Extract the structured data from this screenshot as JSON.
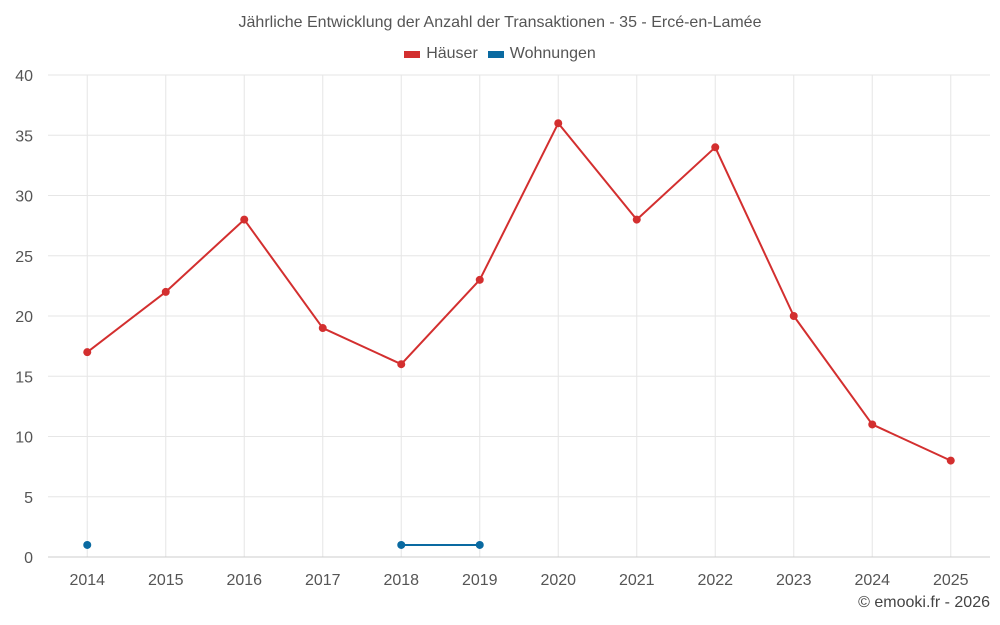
{
  "title": "Jährliche Entwicklung der Anzahl der Transaktionen - 35 - Ercé-en-Lamée",
  "credit": "© emooki.fr - 2026",
  "colors": {
    "haeuser": "#d32f2f",
    "wohnungen": "#0a6aa1",
    "grid": "#e6e6e6",
    "axis": "#cccccc"
  },
  "legend": [
    {
      "label": "Häuser",
      "color": "#d32f2f"
    },
    {
      "label": "Wohnungen",
      "color": "#0a6aa1"
    }
  ],
  "chart_data": {
    "type": "line",
    "title": "Jährliche Entwicklung der Anzahl der Transaktionen - 35 - Ercé-en-Lamée",
    "categories": [
      "2014",
      "2015",
      "2016",
      "2017",
      "2018",
      "2019",
      "2020",
      "2021",
      "2022",
      "2023",
      "2024",
      "2025"
    ],
    "ylim": [
      0,
      40
    ],
    "yticks": [
      0,
      5,
      10,
      15,
      20,
      25,
      30,
      35,
      40
    ],
    "grid": true,
    "legend_position": "top-center",
    "series": [
      {
        "name": "Häuser",
        "color": "#d32f2f",
        "values": [
          17,
          22,
          28,
          19,
          16,
          23,
          36,
          28,
          34,
          20,
          11,
          8
        ]
      },
      {
        "name": "Wohnungen",
        "color": "#0a6aa1",
        "values": [
          1,
          null,
          null,
          null,
          1,
          1,
          null,
          null,
          null,
          null,
          null,
          null
        ]
      }
    ]
  }
}
